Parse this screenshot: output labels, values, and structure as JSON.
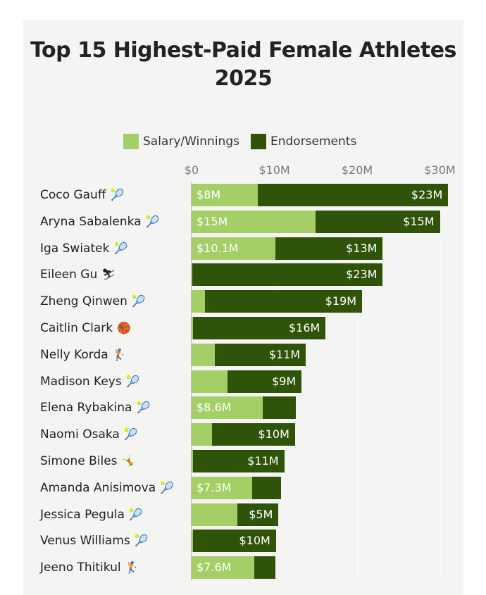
{
  "colors": {
    "salary": "#a4cf66",
    "endorsements": "#2f5409"
  },
  "chart_data": {
    "type": "bar",
    "orientation": "horizontal",
    "stacked": true,
    "title": "Top 15 Highest-Paid Female Athletes 2025",
    "legend": {
      "position": "top",
      "entries": [
        "Salary/Winnings",
        "Endorsements"
      ]
    },
    "x_ticks": [
      "$0",
      "$10M",
      "$20M",
      "$30M"
    ],
    "x_range": [
      0,
      32
    ],
    "grid": true,
    "series": [
      {
        "name": "Salary/Winnings",
        "values": [
          8,
          15,
          10.1,
          0.1,
          1.6,
          0.2,
          2.8,
          4.3,
          8.6,
          2.5,
          0.2,
          7.3,
          5.5,
          0.2,
          7.6
        ]
      },
      {
        "name": "Endorsements",
        "values": [
          23,
          15,
          13,
          23,
          19,
          16,
          11,
          9,
          4,
          10,
          11,
          3.5,
          5,
          10,
          2.5
        ]
      }
    ],
    "categories": [
      "Coco Gauff",
      "Aryna Sabalenka",
      "Iga Swiatek",
      "Eileen Gu",
      "Zheng Qinwen",
      "Caitlin Clark",
      "Nelly Korda",
      "Madison Keys",
      "Elena Rybakina",
      "Naomi Osaka",
      "Simone Biles",
      "Amanda Anisimova",
      "Jessica Pegula",
      "Venus Williams",
      "Jeeno Thitikul"
    ],
    "icons": [
      "tennis-ball-icon",
      "tennis-ball-icon",
      "tennis-ball-icon",
      "skier-icon",
      "tennis-ball-icon",
      "basketball-icon",
      "golfer-icon",
      "tennis-ball-icon",
      "tennis-ball-icon",
      "tennis-ball-icon",
      "gymnast-icon",
      "tennis-ball-icon",
      "tennis-ball-icon",
      "tennis-ball-icon",
      "golfer-icon"
    ],
    "salary_labels": [
      "$8M",
      "$15M",
      "$10.1M",
      "",
      "",
      "",
      "",
      "",
      "$8.6M",
      "",
      "",
      "$7.3M",
      "",
      "",
      "$7.6M"
    ],
    "endorsement_labels": [
      "$23M",
      "$15M",
      "$13M",
      "$23M",
      "$19M",
      "$16M",
      "$11M",
      "$9M",
      "",
      "$10M",
      "$11M",
      "",
      "$5M",
      "$10M",
      ""
    ]
  }
}
